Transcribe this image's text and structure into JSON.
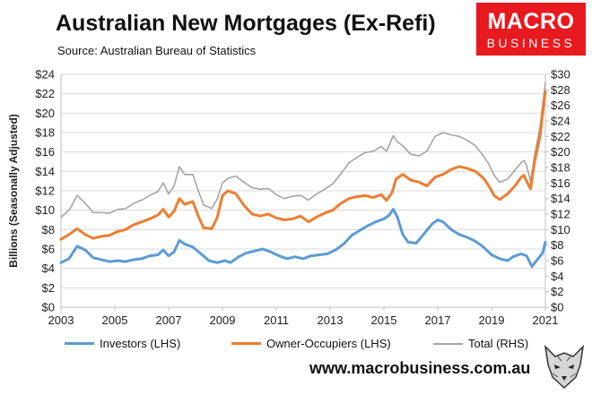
{
  "title": "Australian New Mortgages (Ex-Refi)",
  "subtitle": "Source: Australian Bureau of Statistics",
  "logo": {
    "line1": "MACRO",
    "line2": "BUSINESS",
    "color": "#e8191f"
  },
  "footer": "www.macrobusiness.com.au",
  "chart_data": {
    "type": "line",
    "ylabel": "Billions (Seasonally Adjusted)",
    "xlim": [
      2003,
      2021
    ],
    "x_ticks": [
      "2003",
      "2005",
      "2007",
      "2009",
      "2011",
      "2013",
      "2015",
      "2017",
      "2019",
      "2021"
    ],
    "y_left": {
      "range": [
        0,
        24
      ],
      "ticks": [
        "$0",
        "$2",
        "$4",
        "$6",
        "$8",
        "$10",
        "$12",
        "$14",
        "$16",
        "$18",
        "$20",
        "$22",
        "$24"
      ]
    },
    "y_right": {
      "range": [
        0,
        30
      ],
      "ticks": [
        "$0",
        "$2",
        "$4",
        "$6",
        "$8",
        "$10",
        "$12",
        "$14",
        "$16",
        "$18",
        "$20",
        "$22",
        "$24",
        "$26",
        "$28",
        "$30"
      ]
    },
    "grid": true,
    "legend_position": "bottom",
    "series": [
      {
        "name": "Investors (LHS)",
        "axis": "left",
        "color": "#5b9bd5",
        "points": [
          [
            2003.0,
            4.6
          ],
          [
            2003.3,
            5.0
          ],
          [
            2003.6,
            6.3
          ],
          [
            2003.9,
            5.9
          ],
          [
            2004.2,
            5.1
          ],
          [
            2004.5,
            4.9
          ],
          [
            2004.8,
            4.7
          ],
          [
            2005.1,
            4.8
          ],
          [
            2005.4,
            4.7
          ],
          [
            2005.7,
            4.9
          ],
          [
            2006.0,
            5.0
          ],
          [
            2006.3,
            5.3
          ],
          [
            2006.6,
            5.4
          ],
          [
            2006.8,
            5.9
          ],
          [
            2007.0,
            5.3
          ],
          [
            2007.2,
            5.7
          ],
          [
            2007.4,
            6.9
          ],
          [
            2007.6,
            6.5
          ],
          [
            2007.9,
            6.2
          ],
          [
            2008.2,
            5.5
          ],
          [
            2008.5,
            4.8
          ],
          [
            2008.8,
            4.6
          ],
          [
            2009.1,
            4.8
          ],
          [
            2009.3,
            4.6
          ],
          [
            2009.6,
            5.2
          ],
          [
            2009.9,
            5.6
          ],
          [
            2010.2,
            5.8
          ],
          [
            2010.5,
            6.0
          ],
          [
            2010.8,
            5.7
          ],
          [
            2011.1,
            5.3
          ],
          [
            2011.4,
            5.0
          ],
          [
            2011.7,
            5.2
          ],
          [
            2012.0,
            5.0
          ],
          [
            2012.3,
            5.3
          ],
          [
            2012.6,
            5.4
          ],
          [
            2012.9,
            5.5
          ],
          [
            2013.2,
            5.9
          ],
          [
            2013.5,
            6.5
          ],
          [
            2013.8,
            7.4
          ],
          [
            2014.1,
            7.9
          ],
          [
            2014.4,
            8.4
          ],
          [
            2014.7,
            8.8
          ],
          [
            2015.0,
            9.1
          ],
          [
            2015.2,
            9.5
          ],
          [
            2015.35,
            10.1
          ],
          [
            2015.5,
            9.3
          ],
          [
            2015.7,
            7.5
          ],
          [
            2015.9,
            6.7
          ],
          [
            2016.2,
            6.6
          ],
          [
            2016.5,
            7.6
          ],
          [
            2016.8,
            8.6
          ],
          [
            2017.0,
            9.0
          ],
          [
            2017.2,
            8.8
          ],
          [
            2017.5,
            8.0
          ],
          [
            2017.8,
            7.5
          ],
          [
            2018.1,
            7.2
          ],
          [
            2018.4,
            6.8
          ],
          [
            2018.7,
            6.2
          ],
          [
            2019.0,
            5.4
          ],
          [
            2019.3,
            5.0
          ],
          [
            2019.6,
            4.8
          ],
          [
            2019.8,
            5.2
          ],
          [
            2020.1,
            5.5
          ],
          [
            2020.3,
            5.3
          ],
          [
            2020.5,
            4.2
          ],
          [
            2020.7,
            4.9
          ],
          [
            2020.9,
            5.6
          ],
          [
            2021.0,
            6.7
          ]
        ]
      },
      {
        "name": "Owner-Occupiers (LHS)",
        "axis": "left",
        "color": "#ed7d31",
        "points": [
          [
            2003.0,
            7.0
          ],
          [
            2003.3,
            7.5
          ],
          [
            2003.6,
            8.1
          ],
          [
            2003.9,
            7.5
          ],
          [
            2004.2,
            7.1
          ],
          [
            2004.5,
            7.3
          ],
          [
            2004.8,
            7.4
          ],
          [
            2005.1,
            7.8
          ],
          [
            2005.4,
            8.0
          ],
          [
            2005.7,
            8.5
          ],
          [
            2006.0,
            8.8
          ],
          [
            2006.3,
            9.1
          ],
          [
            2006.6,
            9.5
          ],
          [
            2006.8,
            10.1
          ],
          [
            2007.0,
            9.3
          ],
          [
            2007.2,
            9.9
          ],
          [
            2007.4,
            11.2
          ],
          [
            2007.6,
            10.6
          ],
          [
            2007.9,
            10.9
          ],
          [
            2008.1,
            9.4
          ],
          [
            2008.3,
            8.2
          ],
          [
            2008.6,
            8.1
          ],
          [
            2008.8,
            9.2
          ],
          [
            2009.0,
            11.5
          ],
          [
            2009.2,
            12.0
          ],
          [
            2009.5,
            11.7
          ],
          [
            2009.8,
            10.5
          ],
          [
            2010.1,
            9.6
          ],
          [
            2010.4,
            9.4
          ],
          [
            2010.7,
            9.6
          ],
          [
            2011.0,
            9.2
          ],
          [
            2011.3,
            9.0
          ],
          [
            2011.6,
            9.1
          ],
          [
            2011.9,
            9.4
          ],
          [
            2012.2,
            8.8
          ],
          [
            2012.5,
            9.3
          ],
          [
            2012.8,
            9.7
          ],
          [
            2013.1,
            10.0
          ],
          [
            2013.4,
            10.7
          ],
          [
            2013.7,
            11.2
          ],
          [
            2014.0,
            11.4
          ],
          [
            2014.3,
            11.5
          ],
          [
            2014.6,
            11.3
          ],
          [
            2014.9,
            11.6
          ],
          [
            2015.1,
            11.0
          ],
          [
            2015.3,
            11.8
          ],
          [
            2015.45,
            13.2
          ],
          [
            2015.7,
            13.7
          ],
          [
            2016.0,
            13.1
          ],
          [
            2016.3,
            12.9
          ],
          [
            2016.6,
            12.5
          ],
          [
            2016.9,
            13.4
          ],
          [
            2017.2,
            13.7
          ],
          [
            2017.5,
            14.2
          ],
          [
            2017.8,
            14.5
          ],
          [
            2018.1,
            14.3
          ],
          [
            2018.4,
            14.0
          ],
          [
            2018.7,
            13.3
          ],
          [
            2018.9,
            12.5
          ],
          [
            2019.1,
            11.5
          ],
          [
            2019.3,
            11.1
          ],
          [
            2019.6,
            11.7
          ],
          [
            2019.9,
            12.6
          ],
          [
            2020.1,
            13.4
          ],
          [
            2020.2,
            13.6
          ],
          [
            2020.3,
            13.0
          ],
          [
            2020.45,
            12.2
          ],
          [
            2020.6,
            15.0
          ],
          [
            2020.8,
            17.6
          ],
          [
            2020.95,
            21.2
          ],
          [
            2021.0,
            22.2
          ]
        ]
      },
      {
        "name": "Total (RHS)",
        "axis": "right",
        "color": "#a5a5a5",
        "points": [
          [
            2003.0,
            11.6
          ],
          [
            2003.3,
            12.5
          ],
          [
            2003.6,
            14.4
          ],
          [
            2003.9,
            13.4
          ],
          [
            2004.2,
            12.2
          ],
          [
            2004.5,
            12.2
          ],
          [
            2004.8,
            12.1
          ],
          [
            2005.1,
            12.6
          ],
          [
            2005.4,
            12.7
          ],
          [
            2005.7,
            13.4
          ],
          [
            2006.0,
            13.8
          ],
          [
            2006.3,
            14.4
          ],
          [
            2006.6,
            14.9
          ],
          [
            2006.8,
            16.0
          ],
          [
            2007.0,
            14.6
          ],
          [
            2007.2,
            15.6
          ],
          [
            2007.4,
            18.1
          ],
          [
            2007.6,
            17.1
          ],
          [
            2007.9,
            17.1
          ],
          [
            2008.1,
            15.0
          ],
          [
            2008.3,
            13.2
          ],
          [
            2008.6,
            12.7
          ],
          [
            2008.8,
            13.9
          ],
          [
            2009.0,
            16.0
          ],
          [
            2009.2,
            16.6
          ],
          [
            2009.5,
            16.9
          ],
          [
            2009.8,
            16.1
          ],
          [
            2010.1,
            15.4
          ],
          [
            2010.4,
            15.2
          ],
          [
            2010.7,
            15.3
          ],
          [
            2011.0,
            14.5
          ],
          [
            2011.3,
            14.0
          ],
          [
            2011.6,
            14.3
          ],
          [
            2011.9,
            14.4
          ],
          [
            2012.2,
            13.8
          ],
          [
            2012.5,
            14.6
          ],
          [
            2012.8,
            15.2
          ],
          [
            2013.1,
            15.9
          ],
          [
            2013.4,
            17.2
          ],
          [
            2013.7,
            18.6
          ],
          [
            2014.0,
            19.3
          ],
          [
            2014.3,
            19.9
          ],
          [
            2014.6,
            20.1
          ],
          [
            2014.9,
            20.7
          ],
          [
            2015.1,
            20.1
          ],
          [
            2015.35,
            22.1
          ],
          [
            2015.5,
            21.3
          ],
          [
            2015.7,
            20.8
          ],
          [
            2016.0,
            19.7
          ],
          [
            2016.3,
            19.5
          ],
          [
            2016.6,
            20.1
          ],
          [
            2016.9,
            22.0
          ],
          [
            2017.2,
            22.5
          ],
          [
            2017.5,
            22.2
          ],
          [
            2017.8,
            22.0
          ],
          [
            2018.1,
            21.5
          ],
          [
            2018.4,
            20.8
          ],
          [
            2018.7,
            19.5
          ],
          [
            2018.9,
            18.4
          ],
          [
            2019.1,
            17.0
          ],
          [
            2019.3,
            16.1
          ],
          [
            2019.6,
            16.5
          ],
          [
            2019.9,
            17.8
          ],
          [
            2020.1,
            18.6
          ],
          [
            2020.2,
            18.9
          ],
          [
            2020.3,
            18.3
          ],
          [
            2020.45,
            16.2
          ],
          [
            2020.6,
            19.6
          ],
          [
            2020.8,
            23.2
          ],
          [
            2020.95,
            27.5
          ],
          [
            2021.0,
            28.9
          ]
        ]
      }
    ]
  }
}
